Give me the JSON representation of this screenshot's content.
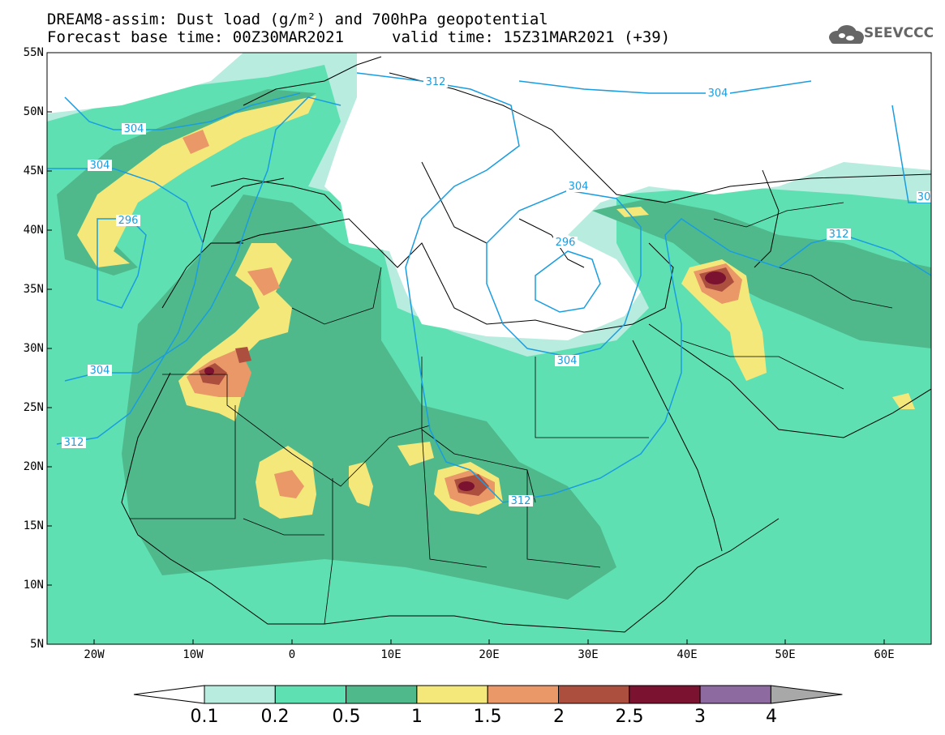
{
  "title": {
    "line1": "DREAM8-assim: Dust load (g/m²) and 700hPa geopotential",
    "line2": "Forecast base time: 00Z30MAR2021",
    "valid": "valid time: 15Z31MAR2021 (+39)"
  },
  "logo": {
    "text": "SEEVCCC",
    "icon": "cloud-logo-icon"
  },
  "axes": {
    "lat_labels": [
      "55N",
      "50N",
      "45N",
      "40N",
      "35N",
      "30N",
      "25N",
      "20N",
      "15N",
      "10N",
      "5N"
    ],
    "lon_labels": [
      "20W",
      "10W",
      "0",
      "10E",
      "20E",
      "30E",
      "40E",
      "50E",
      "60E"
    ]
  },
  "contour_labels": [
    "312",
    "304",
    "304",
    "296",
    "304",
    "312",
    "304",
    "296",
    "312",
    "304",
    "312",
    "304",
    "30"
  ],
  "colorbar": {
    "labels": [
      "0.1",
      "0.2",
      "0.5",
      "1",
      "1.5",
      "2",
      "2.5",
      "3",
      "4"
    ],
    "colors": [
      "#ffffff",
      "#b7ecdf",
      "#5fe0b2",
      "#4fb98c",
      "#f4e87a",
      "#ea9868",
      "#ad4f3f",
      "#7a1230",
      "#8d6aa0",
      "#a8a8a8"
    ]
  },
  "colors": {
    "land_dust_low": "#b7ecdf",
    "land_dust_mid": "#5fe0b2",
    "land_dust_high": "#4fb98c",
    "dust_yellow": "#f4e87a",
    "dust_orange": "#ea9868",
    "dust_brown": "#ad4f3f",
    "dust_dark": "#7a1230",
    "contour": "#1a9de0",
    "coast": "#000000"
  }
}
